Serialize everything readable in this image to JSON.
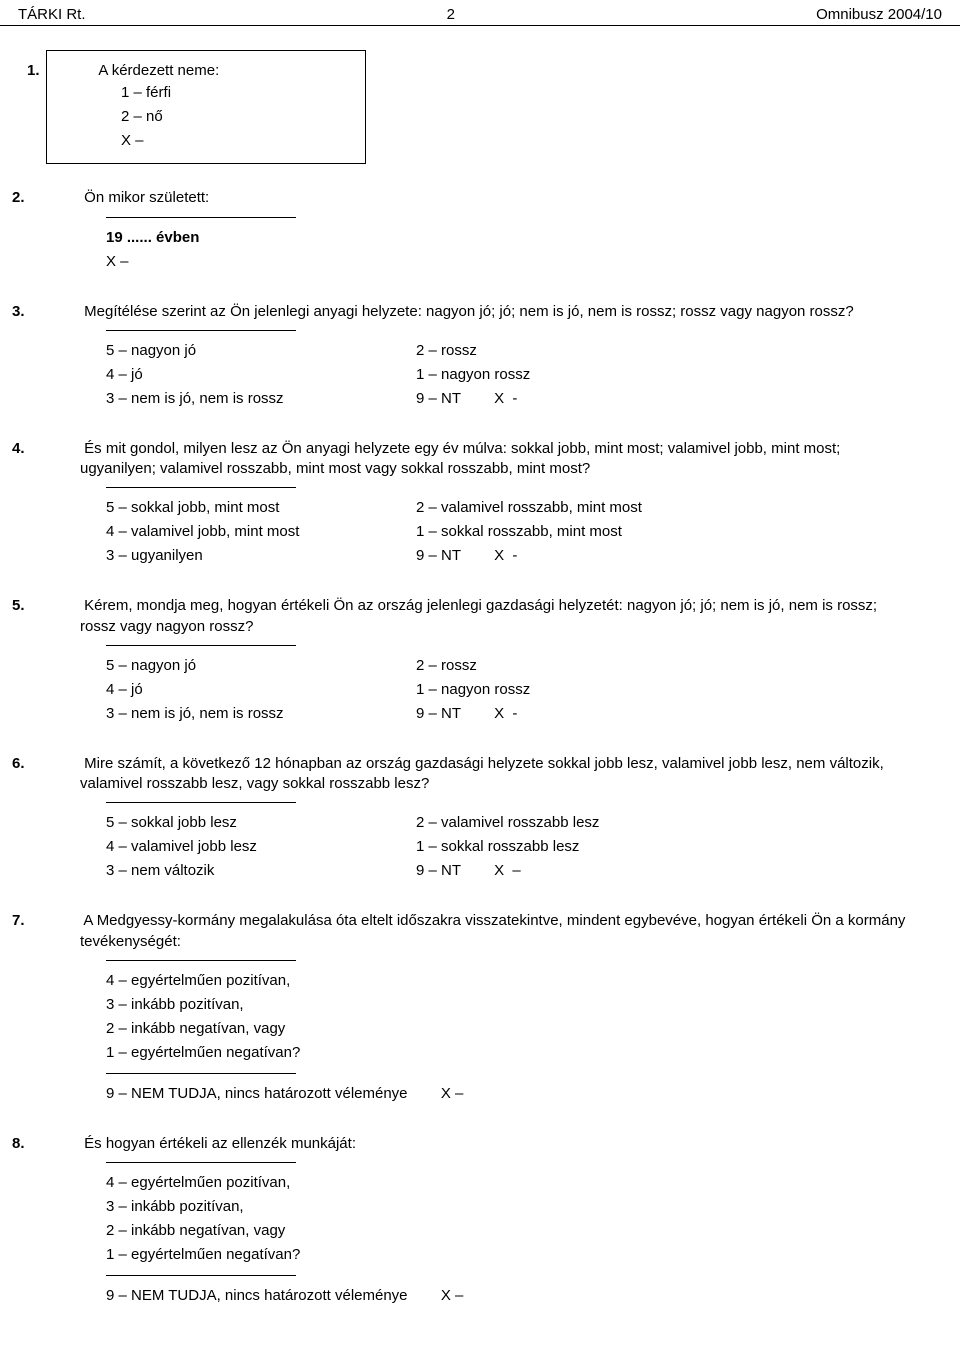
{
  "header": {
    "left": "TÁRKI Rt.",
    "mid": "2",
    "right": "Omnibusz 2004/10"
  },
  "q1": {
    "num": "1.",
    "title": "A kérdezett neme:",
    "opt1": "1 – férfi",
    "opt2": "2 – nő",
    "optX": "X –"
  },
  "q2": {
    "num": "2.",
    "title": "Ön mikor született:",
    "year": "19 ...... évben",
    "optX": "X –"
  },
  "q3": {
    "num": "3.",
    "text": "Megítélése szerint az Ön jelenlegi anyagi helyzete: nagyon jó; jó; nem is jó, nem is rossz; rossz vagy nagyon rossz?",
    "l1": "5 – nagyon jó",
    "l2": "4 – jó",
    "l3": "3 – nem is jó, nem is rossz",
    "r1": "2 – rossz",
    "r2": "1 – nagyon rossz",
    "r3": "9 – NT        X  -"
  },
  "q4": {
    "num": "4.",
    "text": "És mit gondol, milyen lesz az Ön anyagi helyzete egy év múlva: sokkal jobb, mint most; valamivel jobb, mint most; ugyanilyen; valamivel rosszabb, mint most vagy sokkal rosszabb, mint most?",
    "l1": "5 – sokkal jobb, mint most",
    "l2": "4 – valamivel jobb, mint most",
    "l3": "3 – ugyanilyen",
    "r1": "2 – valamivel rosszabb, mint most",
    "r2": "1 – sokkal rosszabb, mint most",
    "r3": "9 – NT        X  -"
  },
  "q5": {
    "num": "5.",
    "text": "Kérem, mondja meg, hogyan értékeli Ön az ország jelenlegi gazdasági helyzetét: nagyon jó; jó; nem is jó, nem is rossz; rossz vagy nagyon rossz?",
    "l1": "5 – nagyon jó",
    "l2": "4 – jó",
    "l3": "3 – nem is jó, nem is rossz",
    "r1": "2 – rossz",
    "r2": "1 – nagyon rossz",
    "r3": "9 – NT        X  -"
  },
  "q6": {
    "num": "6.",
    "text": "Mire számít, a következő 12 hónapban az ország gazdasági helyzete sokkal jobb lesz, valamivel jobb lesz, nem változik, valamivel rosszabb lesz, vagy sokkal rosszabb lesz?",
    "l1": "5 – sokkal jobb lesz",
    "l2": "4 – valamivel jobb lesz",
    "l3": "3 – nem változik",
    "r1": "2 – valamivel rosszabb lesz",
    "r2": "1 – sokkal rosszabb lesz",
    "r3": "9 – NT        X  –"
  },
  "q7": {
    "num": "7.",
    "text": "A Medgyessy-kormány megalakulása óta eltelt időszakra visszatekintve, mindent egybevéve, hogyan értékeli Ön a kormány tevékenységét:",
    "o1": "4 – egyértelműen pozitívan,",
    "o2": "3 – inkább pozitívan,",
    "o3": "2 – inkább negatívan, vagy",
    "o4": "1 – egyértelműen negatívan?",
    "nt": "9 – NEM TUDJA, nincs határozott véleménye        X –"
  },
  "q8": {
    "num": "8.",
    "text": "És hogyan értékeli az ellenzék munkáját:",
    "o1": "4 – egyértelműen pozitívan,",
    "o2": "3 – inkább pozitívan,",
    "o3": "2 – inkább negatívan, vagy",
    "o4": "1 – egyértelműen negatívan?",
    "nt": "9 – NEM TUDJA, nincs határozott véleménye        X –"
  }
}
